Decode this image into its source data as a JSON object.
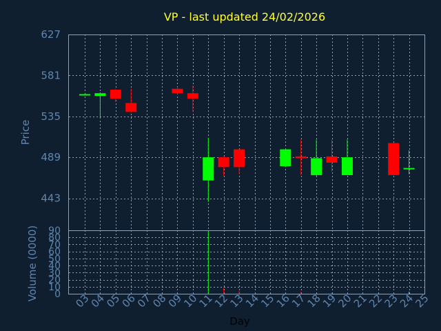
{
  "chart_data": {
    "type": "candlestick",
    "title": "VP - last updated 24/02/2026",
    "ylabel": "Price",
    "volume_label": "Volume (0000)",
    "xlabel": "Day",
    "x_ticks": [
      "03",
      "04",
      "05",
      "06",
      "07",
      "08",
      "09",
      "10",
      "11",
      "12",
      "13",
      "14",
      "15",
      "16",
      "17",
      "18",
      "19",
      "20",
      "21",
      "22",
      "23",
      "24",
      "25"
    ],
    "price_ticks": [
      "627",
      "581",
      "535",
      "489",
      "443"
    ],
    "price_tick_values": [
      627,
      581,
      535,
      489,
      443
    ],
    "price_range": [
      407,
      627
    ],
    "volume_ticks": [
      "90",
      "80",
      "70",
      "60",
      "50",
      "40",
      "30",
      "20",
      "10",
      "0"
    ],
    "volume_tick_values": [
      90,
      80,
      70,
      60,
      50,
      40,
      30,
      20,
      10,
      0
    ],
    "volume_range": [
      0,
      90
    ],
    "colors": {
      "up": "#00ff00",
      "down": "#ff0000",
      "background": "#0f1f30",
      "title": "#ffff33",
      "text": "#5f86b0"
    },
    "candles": [
      {
        "day": "03",
        "open": 559,
        "close": 560,
        "high": 560,
        "low": 559
      },
      {
        "day": "04",
        "open": 558,
        "close": 561,
        "high": 562,
        "low": 533
      },
      {
        "day": "05",
        "open": 565,
        "close": 555,
        "high": 566,
        "low": 551
      },
      {
        "day": "06",
        "open": 550,
        "close": 540,
        "high": 566,
        "low": 539
      },
      {
        "day": "09",
        "open": 566,
        "close": 561,
        "high": 568,
        "low": 560
      },
      {
        "day": "10",
        "open": 561,
        "close": 555,
        "high": 570,
        "low": 540
      },
      {
        "day": "11",
        "open": 463,
        "close": 489,
        "high": 511,
        "low": 439
      },
      {
        "day": "12",
        "open": 489,
        "close": 478,
        "high": 490,
        "low": 468
      },
      {
        "day": "13",
        "open": 498,
        "close": 478,
        "high": 498,
        "low": 470
      },
      {
        "day": "16",
        "open": 479,
        "close": 498,
        "high": 498,
        "low": 478
      },
      {
        "day": "17",
        "open": 490,
        "close": 488,
        "high": 509,
        "low": 469
      },
      {
        "day": "18",
        "open": 469,
        "close": 488,
        "high": 509,
        "low": 468
      },
      {
        "day": "19",
        "open": 490,
        "close": 483,
        "high": 509,
        "low": 473
      },
      {
        "day": "20",
        "open": 469,
        "close": 489,
        "high": 509,
        "low": 469
      },
      {
        "day": "23",
        "open": 505,
        "close": 469,
        "high": 505,
        "low": 469
      },
      {
        "day": "24",
        "open": 476,
        "close": 477,
        "high": 497,
        "low": 470
      }
    ],
    "volume": [
      {
        "day": "11",
        "value": 88,
        "color": "up"
      },
      {
        "day": "12",
        "value": 9,
        "color": "down"
      },
      {
        "day": "13",
        "value": 4,
        "color": "down"
      },
      {
        "day": "17",
        "value": 3,
        "color": "down"
      },
      {
        "day": "19",
        "value": 2,
        "color": "down"
      },
      {
        "day": "24",
        "value": 3,
        "color": "up"
      }
    ]
  }
}
